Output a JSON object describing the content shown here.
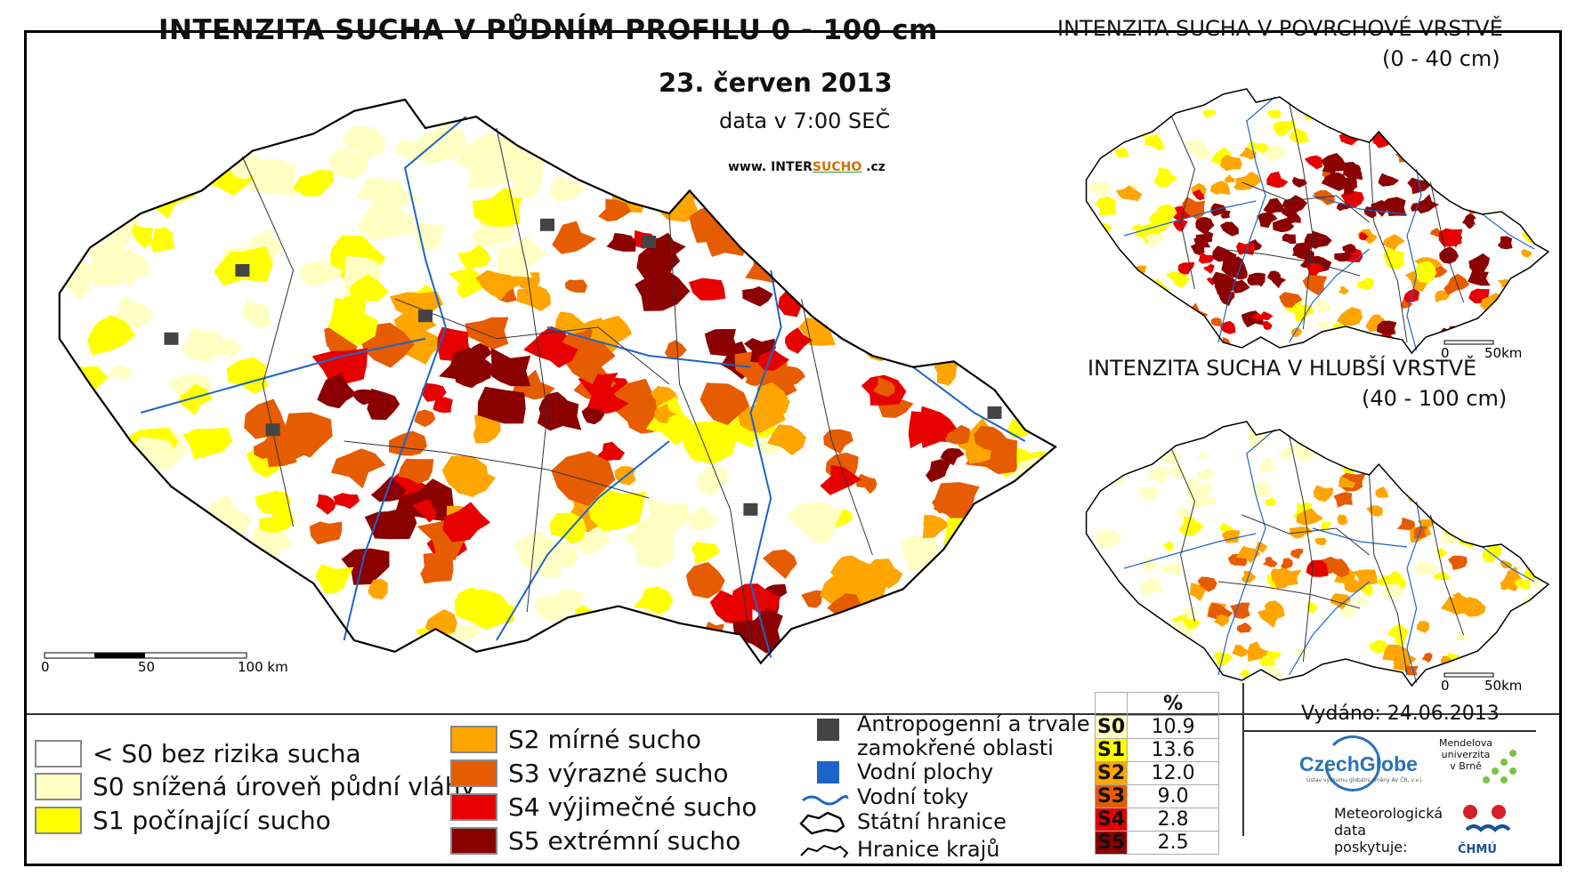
{
  "main_map": {
    "title": "INTENZITA SUCHA V PŮDNÍM PROFILU 0 - 100 cm",
    "date": "23. červen 2013",
    "time_note": "data v 7:00 SEČ",
    "website_prefix": "www. INTER",
    "website_accent": "SUCHO",
    "website_suffix": " .cz",
    "scalebar": {
      "labels": [
        "0",
        "50",
        "100 km"
      ]
    }
  },
  "surface_map": {
    "title": "INTENZITA SUCHA V POVRCHOVÉ VRSTVĚ",
    "depth": "(0 - 40 cm)",
    "scalebar": {
      "labels": [
        "0",
        "50km"
      ]
    }
  },
  "deep_map": {
    "title": "INTENZITA SUCHA V HLUBŠÍ VRSTVĚ",
    "depth": "(40 - 100 cm)",
    "scalebar": {
      "labels": [
        "0",
        "50km"
      ]
    }
  },
  "legend": {
    "drought_classes": [
      {
        "label": "< S0 bez rizika sucha",
        "color": "#ffffff"
      },
      {
        "label": "S0 snížená úroveň půdní vláhy",
        "color": "#ffffc4"
      },
      {
        "label": "S1 počínající sucho",
        "color": "#ffff00"
      },
      {
        "label": "S2 mírné sucho",
        "color": "#ffa500"
      },
      {
        "label": "S3 výrazné sucho",
        "color": "#e65c00"
      },
      {
        "label": "S4 výjimečné sucho",
        "color": "#e60000"
      },
      {
        "label": "S5 extrémní sucho",
        "color": "#8b0000"
      }
    ],
    "other": {
      "anthropogenic": "Antropogenní a trvale zamokřené oblasti",
      "anthropogenic_line1": "Antropogenní a trvale",
      "anthropogenic_line2": "zamokřené oblasti",
      "water_bodies": "Vodní plochy",
      "streams": "Vodní toky",
      "state_border": "Státní hranice",
      "region_border": "Hranice krajů"
    },
    "colors": {
      "anthropogenic": "#444444",
      "water": "#1e64c8",
      "stream": "#1e64c8"
    }
  },
  "stats": {
    "header": "%",
    "rows": [
      {
        "code": "S0",
        "value": "10.9",
        "color": "#ffffc4"
      },
      {
        "code": "S1",
        "value": "13.6",
        "color": "#ffff00"
      },
      {
        "code": "S2",
        "value": "12.0",
        "color": "#ffa500"
      },
      {
        "code": "S3",
        "value": "9.0",
        "color": "#e65c00"
      },
      {
        "code": "S4",
        "value": "2.8",
        "color": "#e60000"
      },
      {
        "code": "S5",
        "value": "2.5",
        "color": "#8b0000"
      }
    ]
  },
  "credits": {
    "issued": "Vydáno: 24.06.2013",
    "czechglobe": "CzechGlobe",
    "czechglobe_sub": "Ústav výzkumu globální změny AV ČR, v.v.i.",
    "mendel": "Mendelova\nuniverzita\nv Brně",
    "met_data": "Meteorologická\ndata\nposkytuje:",
    "chmu": "ČHMÚ"
  }
}
